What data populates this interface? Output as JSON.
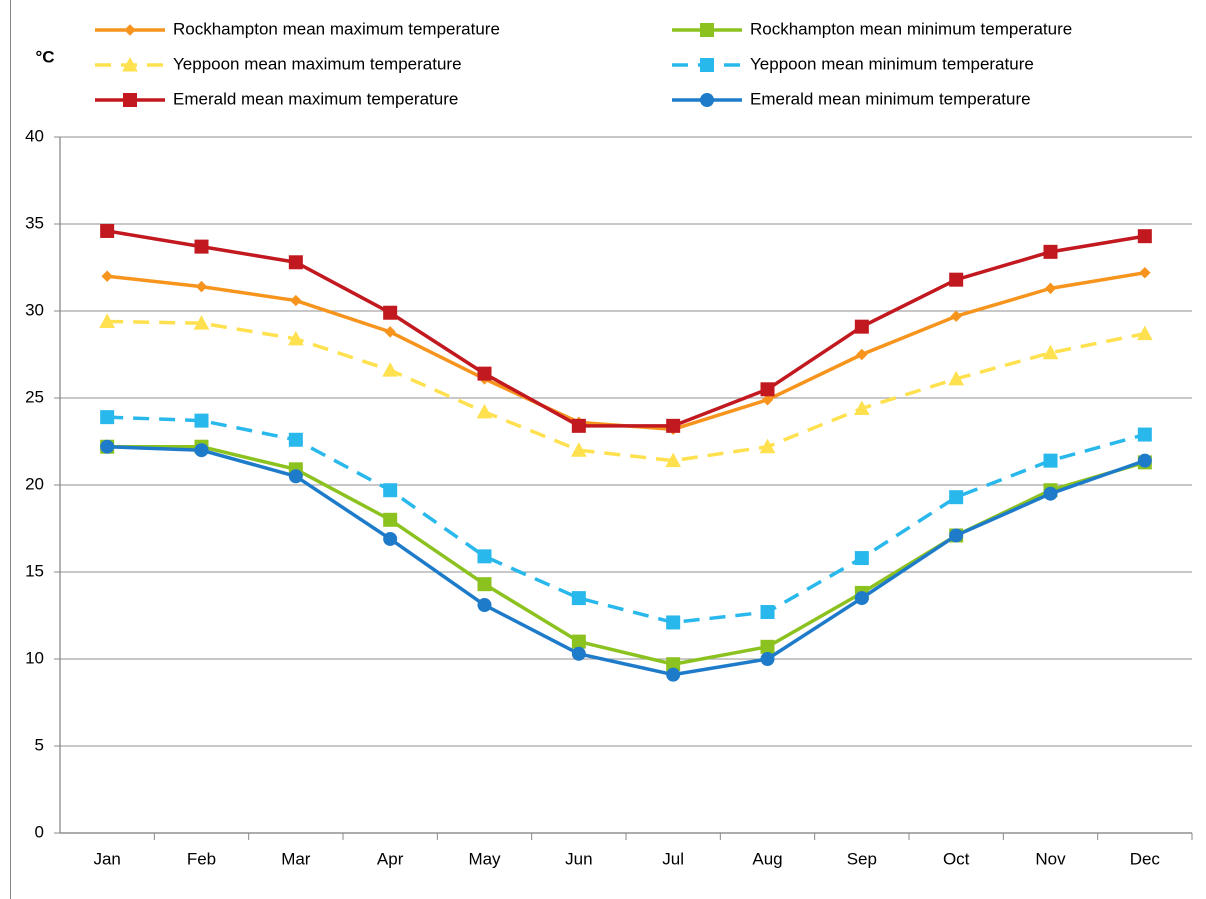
{
  "chart_data": {
    "type": "line",
    "y_label": "°C",
    "categories": [
      "Jan",
      "Feb",
      "Mar",
      "Apr",
      "May",
      "Jun",
      "Jul",
      "Aug",
      "Sep",
      "Oct",
      "Nov",
      "Dec"
    ],
    "series": [
      {
        "name": "Rockhampton mean maximum temperature",
        "color": "#f7941d",
        "marker": "diamond",
        "dashed": false,
        "values": [
          32.0,
          31.4,
          30.6,
          28.8,
          26.1,
          23.6,
          23.2,
          24.9,
          27.5,
          29.7,
          31.3,
          32.2
        ]
      },
      {
        "name": "Rockhampton mean minimum temperature",
        "color": "#8cc21f",
        "marker": "square",
        "dashed": false,
        "values": [
          22.2,
          22.2,
          20.9,
          18.0,
          14.3,
          11.0,
          9.7,
          10.7,
          13.8,
          17.1,
          19.7,
          21.3
        ]
      },
      {
        "name": "Yeppoon mean maximum temperature",
        "color": "#ffe14f",
        "marker": "triangle",
        "dashed": true,
        "values": [
          29.4,
          29.3,
          28.4,
          26.6,
          24.2,
          22.0,
          21.4,
          22.2,
          24.4,
          26.1,
          27.6,
          28.7
        ]
      },
      {
        "name": "Yeppoon mean minimum temperature",
        "color": "#29b8ec",
        "marker": "square",
        "dashed": true,
        "values": [
          23.9,
          23.7,
          22.6,
          19.7,
          15.9,
          13.5,
          12.1,
          12.7,
          15.8,
          19.3,
          21.4,
          22.9
        ]
      },
      {
        "name": "Emerald mean maximum temperature",
        "color": "#c1191f",
        "marker": "square",
        "dashed": false,
        "values": [
          34.6,
          33.7,
          32.8,
          29.9,
          26.4,
          23.4,
          23.4,
          25.5,
          29.1,
          31.8,
          33.4,
          34.3
        ]
      },
      {
        "name": "Emerald mean minimum temperature",
        "color": "#1e7bc9",
        "marker": "circle",
        "dashed": false,
        "values": [
          22.2,
          22.0,
          20.5,
          16.9,
          13.1,
          10.3,
          9.1,
          10.0,
          13.5,
          17.1,
          19.5,
          21.4
        ]
      }
    ],
    "ylim": [
      0,
      40
    ],
    "yticks": [
      0,
      5,
      10,
      15,
      20,
      25,
      30,
      35,
      40
    ],
    "grid": true
  }
}
